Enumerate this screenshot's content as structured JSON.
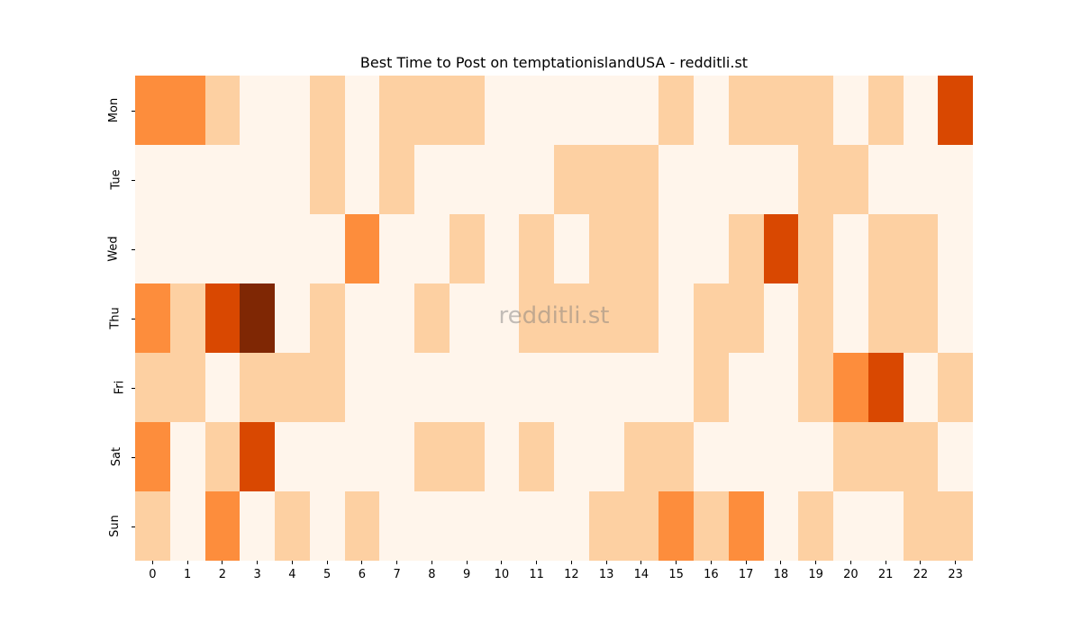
{
  "chart_data": {
    "type": "heatmap",
    "title": "Best Time to Post on temptationislandUSA - redditli.st",
    "xlabel": "",
    "ylabel": "",
    "x": [
      "0",
      "1",
      "2",
      "3",
      "4",
      "5",
      "6",
      "7",
      "8",
      "9",
      "10",
      "11",
      "12",
      "13",
      "14",
      "15",
      "16",
      "17",
      "18",
      "19",
      "20",
      "21",
      "22",
      "23"
    ],
    "y": [
      "Mon",
      "Tue",
      "Wed",
      "Thu",
      "Fri",
      "Sat",
      "Sun"
    ],
    "colormap": "Oranges",
    "level_colors": [
      "#fff5eb",
      "#fdd0a2",
      "#fd8d3c",
      "#d94801",
      "#7f2704"
    ],
    "values": [
      [
        2,
        2,
        1,
        0,
        0,
        1,
        0,
        1,
        1,
        1,
        0,
        0,
        0,
        0,
        0,
        1,
        0,
        1,
        1,
        1,
        0,
        1,
        0,
        3
      ],
      [
        0,
        0,
        0,
        0,
        0,
        1,
        0,
        1,
        0,
        0,
        0,
        0,
        1,
        1,
        1,
        0,
        0,
        0,
        0,
        1,
        1,
        0,
        0,
        0
      ],
      [
        0,
        0,
        0,
        0,
        0,
        0,
        2,
        0,
        0,
        1,
        0,
        1,
        0,
        1,
        1,
        0,
        0,
        1,
        3,
        1,
        0,
        1,
        1,
        0
      ],
      [
        2,
        1,
        3,
        4,
        0,
        1,
        0,
        0,
        1,
        0,
        0,
        1,
        1,
        1,
        1,
        0,
        1,
        1,
        0,
        1,
        0,
        1,
        1,
        0
      ],
      [
        1,
        1,
        0,
        1,
        1,
        1,
        0,
        0,
        0,
        0,
        0,
        0,
        0,
        0,
        0,
        0,
        1,
        0,
        0,
        1,
        2,
        3,
        0,
        1
      ],
      [
        2,
        0,
        1,
        3,
        0,
        0,
        0,
        0,
        1,
        1,
        0,
        1,
        0,
        0,
        1,
        1,
        0,
        0,
        0,
        0,
        1,
        1,
        1,
        0
      ],
      [
        1,
        0,
        2,
        0,
        1,
        0,
        1,
        0,
        0,
        0,
        0,
        0,
        0,
        1,
        1,
        2,
        1,
        2,
        0,
        1,
        0,
        0,
        1,
        1
      ]
    ],
    "legend": "none",
    "grid": false
  },
  "watermark": "redditli.st"
}
